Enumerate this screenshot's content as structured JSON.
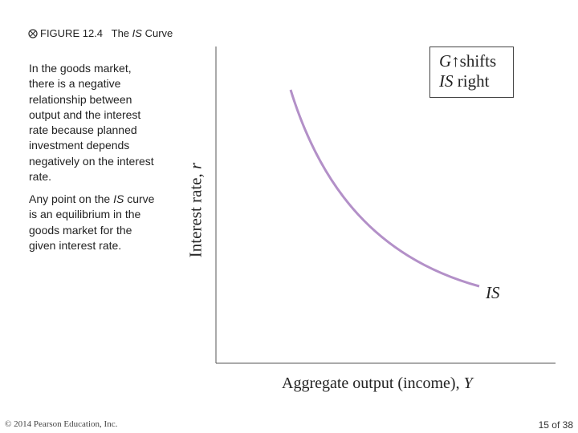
{
  "header": {
    "figure": "FIGURE 12.4",
    "title": {
      "before": "The",
      "italic": "IS",
      "after": "Curve"
    }
  },
  "text": {
    "paragraph1": "In the goods market, there is a negative relationship between output and the interest rate because planned investment depends negatively on the interest rate.",
    "paragraph2": {
      "before": "Any point on the",
      "italic": "IS",
      "after": "curve is an equilibrium in the goods market for the given interest rate."
    }
  },
  "diagram": {
    "y_axis_label": {
      "text": "Interest rate,",
      "variable": "r"
    },
    "x_axis_label": {
      "text": "Aggregate output (income),",
      "variable": "Y"
    },
    "curve_label": "IS",
    "box": {
      "line1": {
        "variable": "G",
        "arrow": "↑",
        "text": "shifts"
      },
      "line2": {
        "variable": "IS",
        "text": "right"
      }
    }
  },
  "footer": {
    "copyright": "© 2014 Pearson Education, Inc.",
    "page": "15 of 38"
  }
}
